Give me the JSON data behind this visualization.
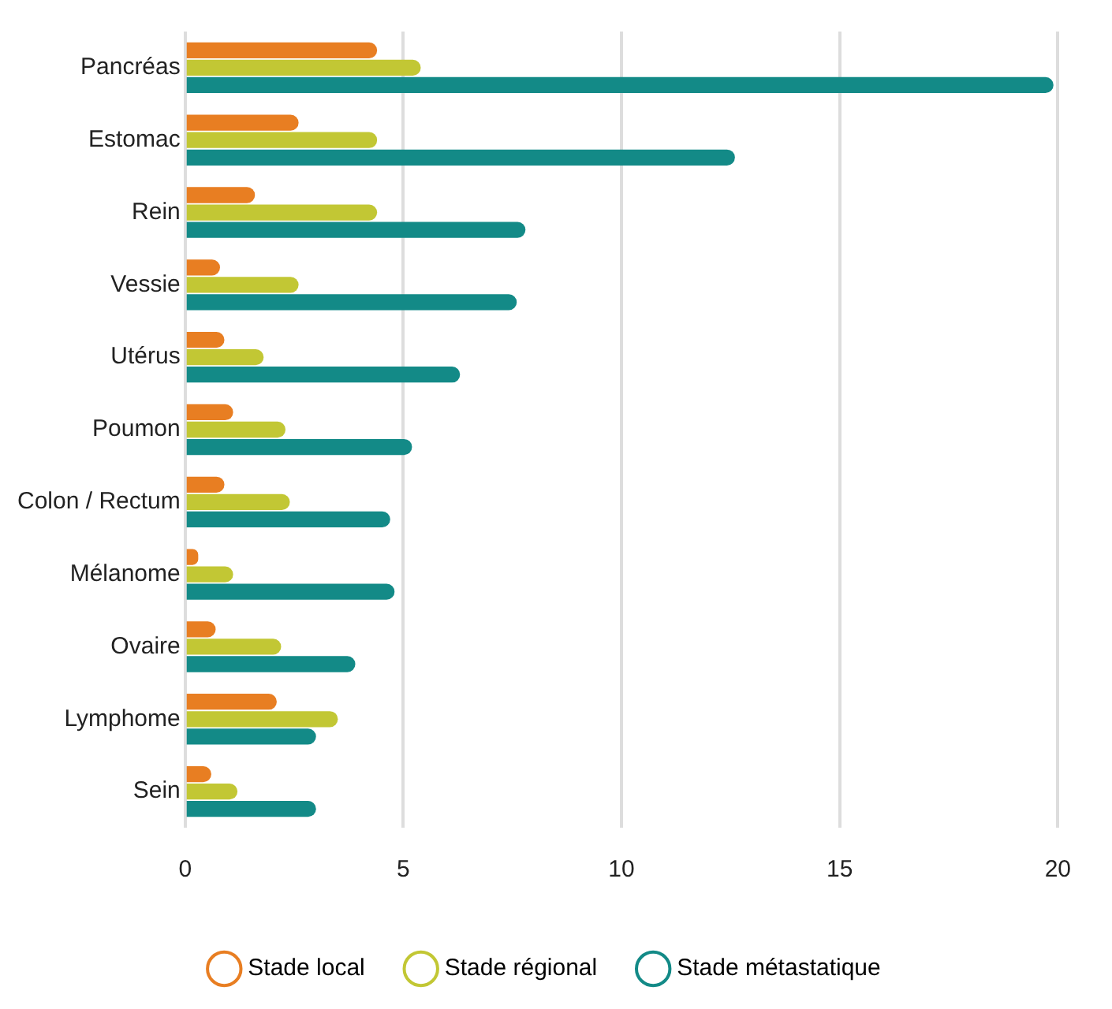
{
  "chart_data": {
    "type": "bar",
    "orientation": "horizontal",
    "categories": [
      "Pancréas",
      "Estomac",
      "Rein",
      "Vessie",
      "Utérus",
      "Poumon",
      "Colon / Rectum",
      "Mélanome",
      "Ovaire",
      "Lymphome",
      "Sein"
    ],
    "series": [
      {
        "name": "Stade local",
        "color": "#e87e22",
        "values": [
          4.4,
          2.6,
          1.6,
          0.8,
          0.9,
          1.1,
          0.9,
          0.3,
          0.7,
          2.1,
          0.6
        ]
      },
      {
        "name": "Stade régional",
        "color": "#c2c734",
        "values": [
          5.4,
          4.4,
          4.4,
          2.6,
          1.8,
          2.3,
          2.4,
          1.1,
          2.2,
          3.5,
          1.2
        ]
      },
      {
        "name": "Stade métastatique",
        "color": "#138a87",
        "values": [
          19.9,
          12.6,
          7.8,
          7.6,
          6.3,
          5.2,
          4.7,
          4.8,
          3.9,
          3.0,
          3.0
        ]
      }
    ],
    "xlim": [
      0,
      20
    ],
    "xticks": [
      0,
      5,
      10,
      15,
      20
    ],
    "grid": "x",
    "legend": "bottom"
  }
}
